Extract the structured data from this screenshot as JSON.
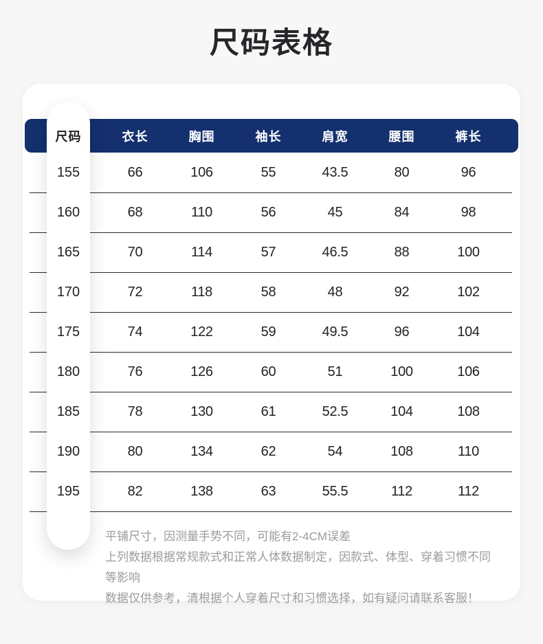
{
  "page": {
    "title": "尺码表格",
    "background_color": "#f7f7f8"
  },
  "table": {
    "header_bg_color": "#14306e",
    "size_column_header": "尺码",
    "columns": [
      "衣长",
      "胸围",
      "袖长",
      "肩宽",
      "腰围",
      "裤长"
    ],
    "rows": [
      {
        "size": "155",
        "values": [
          "66",
          "106",
          "55",
          "43.5",
          "80",
          "96"
        ]
      },
      {
        "size": "160",
        "values": [
          "68",
          "110",
          "56",
          "45",
          "84",
          "98"
        ]
      },
      {
        "size": "165",
        "values": [
          "70",
          "114",
          "57",
          "46.5",
          "88",
          "100"
        ]
      },
      {
        "size": "170",
        "values": [
          "72",
          "118",
          "58",
          "48",
          "92",
          "102"
        ]
      },
      {
        "size": "175",
        "values": [
          "74",
          "122",
          "59",
          "49.5",
          "96",
          "104"
        ]
      },
      {
        "size": "180",
        "values": [
          "76",
          "126",
          "60",
          "51",
          "100",
          "106"
        ]
      },
      {
        "size": "185",
        "values": [
          "78",
          "130",
          "61",
          "52.5",
          "104",
          "108"
        ]
      },
      {
        "size": "190",
        "values": [
          "80",
          "134",
          "62",
          "54",
          "108",
          "110"
        ]
      },
      {
        "size": "195",
        "values": [
          "82",
          "138",
          "63",
          "55.5",
          "112",
          "112"
        ]
      }
    ]
  },
  "notes": {
    "lines": [
      "平铺尺寸，因测量手势不同，可能有2-4CM误差",
      "上列数据根据常规款式和正常人体数据制定，因款式、体型、穿着习惯不同等影响",
      "数据仅供参考，清根据个人穿着尺寸和习惯选择，如有疑问请联系客服！"
    ]
  }
}
